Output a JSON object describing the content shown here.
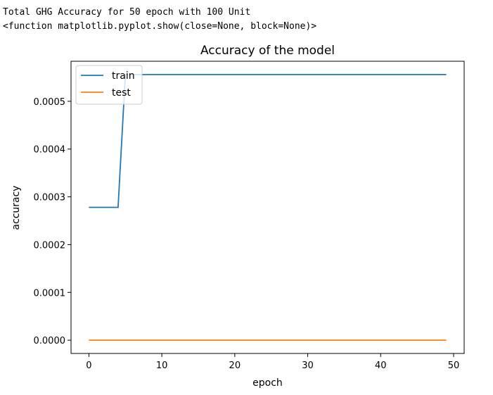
{
  "console": {
    "line1": "Total GHG Accuracy for 50 epoch with 100 Unit",
    "line2": "<function matplotlib.pyplot.show(close=None, block=None)>"
  },
  "chart_data": {
    "type": "line",
    "title": "Accuracy of the model",
    "xlabel": "epoch",
    "ylabel": "accuracy",
    "xlim": [
      -2.45,
      51.45
    ],
    "ylim": [
      -2.78e-05,
      0.0005838
    ],
    "xticks": [
      0,
      10,
      20,
      30,
      40,
      50
    ],
    "xtick_labels": [
      "0",
      "10",
      "20",
      "30",
      "40",
      "50"
    ],
    "yticks": [
      0,
      0.0001,
      0.0002,
      0.0003,
      0.0004,
      0.0005
    ],
    "ytick_labels": [
      "0.0000",
      "0.0001",
      "0.0002",
      "0.0003",
      "0.0004",
      "0.0005"
    ],
    "legend_position": "top-left",
    "grid": false,
    "series": [
      {
        "name": "train",
        "color": "#1f77b4",
        "x": [
          0,
          1,
          2,
          3,
          4,
          5,
          6,
          7,
          8,
          9,
          10,
          11,
          12,
          13,
          14,
          15,
          16,
          17,
          18,
          19,
          20,
          21,
          22,
          23,
          24,
          25,
          26,
          27,
          28,
          29,
          30,
          31,
          32,
          33,
          34,
          35,
          36,
          37,
          38,
          39,
          40,
          41,
          42,
          43,
          44,
          45,
          46,
          47,
          48,
          49
        ],
        "values": [
          0.000278,
          0.000278,
          0.000278,
          0.000278,
          0.000278,
          0.000556,
          0.000556,
          0.000556,
          0.000556,
          0.000556,
          0.000556,
          0.000556,
          0.000556,
          0.000556,
          0.000556,
          0.000556,
          0.000556,
          0.000556,
          0.000556,
          0.000556,
          0.000556,
          0.000556,
          0.000556,
          0.000556,
          0.000556,
          0.000556,
          0.000556,
          0.000556,
          0.000556,
          0.000556,
          0.000556,
          0.000556,
          0.000556,
          0.000556,
          0.000556,
          0.000556,
          0.000556,
          0.000556,
          0.000556,
          0.000556,
          0.000556,
          0.000556,
          0.000556,
          0.000556,
          0.000556,
          0.000556,
          0.000556,
          0.000556,
          0.000556,
          0.000556
        ]
      },
      {
        "name": "test",
        "color": "#ff7f0e",
        "x": [
          0,
          1,
          2,
          3,
          4,
          5,
          6,
          7,
          8,
          9,
          10,
          11,
          12,
          13,
          14,
          15,
          16,
          17,
          18,
          19,
          20,
          21,
          22,
          23,
          24,
          25,
          26,
          27,
          28,
          29,
          30,
          31,
          32,
          33,
          34,
          35,
          36,
          37,
          38,
          39,
          40,
          41,
          42,
          43,
          44,
          45,
          46,
          47,
          48,
          49
        ],
        "values": [
          0,
          0,
          0,
          0,
          0,
          0,
          0,
          0,
          0,
          0,
          0,
          0,
          0,
          0,
          0,
          0,
          0,
          0,
          0,
          0,
          0,
          0,
          0,
          0,
          0,
          0,
          0,
          0,
          0,
          0,
          0,
          0,
          0,
          0,
          0,
          0,
          0,
          0,
          0,
          0,
          0,
          0,
          0,
          0,
          0,
          0,
          0,
          0,
          0,
          0
        ]
      }
    ]
  }
}
